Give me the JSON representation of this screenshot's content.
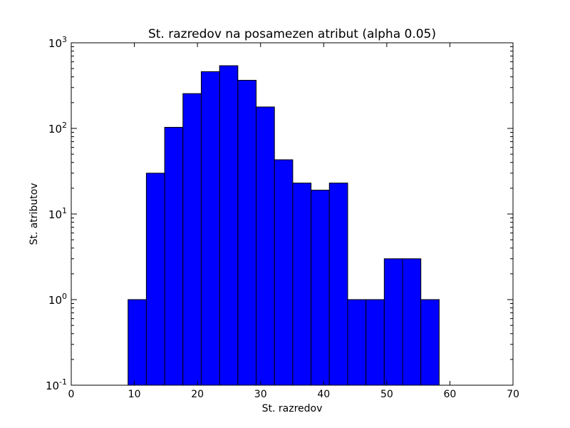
{
  "chart_data": {
    "type": "bar",
    "title": "St. razredov na posamezen atribut (alpha 0.05)",
    "xlabel": "St. razredov",
    "ylabel": "St. atributov",
    "xlim": [
      0,
      70
    ],
    "ylim": [
      0.1,
      1000
    ],
    "yscale": "log",
    "grid": false,
    "legend": "none",
    "bar_color": "#0000ff",
    "edge_color": "#000000",
    "bins": [
      {
        "x0": 9.0,
        "x1": 11.9,
        "count": 1
      },
      {
        "x0": 11.9,
        "x1": 14.8,
        "count": 30
      },
      {
        "x0": 14.8,
        "x1": 17.7,
        "count": 103
      },
      {
        "x0": 17.7,
        "x1": 20.6,
        "count": 255
      },
      {
        "x0": 20.6,
        "x1": 23.5,
        "count": 460
      },
      {
        "x0": 23.5,
        "x1": 26.4,
        "count": 540
      },
      {
        "x0": 26.4,
        "x1": 29.3,
        "count": 365
      },
      {
        "x0": 29.3,
        "x1": 32.2,
        "count": 178
      },
      {
        "x0": 32.2,
        "x1": 35.1,
        "count": 43
      },
      {
        "x0": 35.1,
        "x1": 38.0,
        "count": 23
      },
      {
        "x0": 38.0,
        "x1": 40.9,
        "count": 19
      },
      {
        "x0": 40.9,
        "x1": 43.8,
        "count": 23
      },
      {
        "x0": 43.8,
        "x1": 46.7,
        "count": 1
      },
      {
        "x0": 46.7,
        "x1": 49.6,
        "count": 1
      },
      {
        "x0": 49.6,
        "x1": 52.5,
        "count": 3
      },
      {
        "x0": 52.5,
        "x1": 55.4,
        "count": 3
      },
      {
        "x0": 55.4,
        "x1": 58.3,
        "count": 1
      }
    ],
    "x_ticks": [
      {
        "value": 0,
        "label": "0"
      },
      {
        "value": 10,
        "label": "10"
      },
      {
        "value": 20,
        "label": "20"
      },
      {
        "value": 30,
        "label": "30"
      },
      {
        "value": 40,
        "label": "40"
      },
      {
        "value": 50,
        "label": "50"
      },
      {
        "value": 60,
        "label": "60"
      },
      {
        "value": 70,
        "label": "70"
      }
    ],
    "y_ticks": [
      {
        "value": 0.1,
        "base": "10",
        "exponent": "-1"
      },
      {
        "value": 1,
        "base": "10",
        "exponent": "0"
      },
      {
        "value": 10,
        "base": "10",
        "exponent": "1"
      },
      {
        "value": 100,
        "base": "10",
        "exponent": "2"
      },
      {
        "value": 1000,
        "base": "10",
        "exponent": "3"
      }
    ]
  }
}
